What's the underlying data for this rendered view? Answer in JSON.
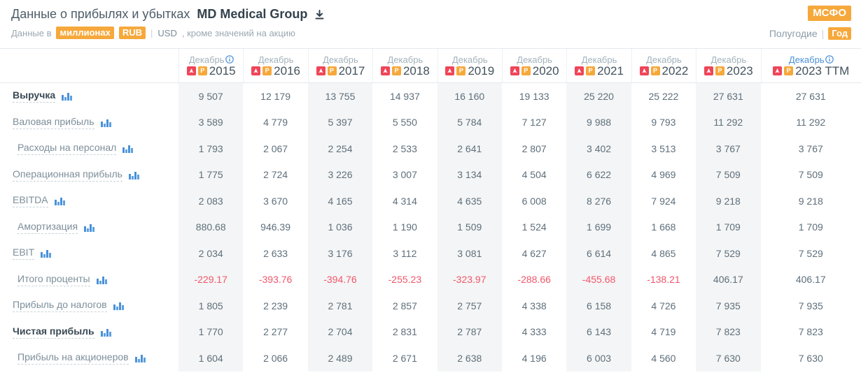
{
  "header": {
    "title_prefix": "Данные о прибылях и убытках",
    "company": "MD Medical Group",
    "subtitle": {
      "prefix": "Данные в",
      "unit_badge": "миллионах",
      "currency_badge": "RUB",
      "separator": "|",
      "currency_alt": "USD",
      "note": ", кроме значений на акцию"
    },
    "standard_badge": "МСФО",
    "period_toggle": {
      "half_year": "Полугодие",
      "separator": "|",
      "year": "Год"
    }
  },
  "colors": {
    "accent_orange": "#f6a83b",
    "link_blue": "#4a90d9",
    "negative_red": "#f2566a",
    "pdf_red": "#ef4558",
    "stripe_gray": "#f4f5f6",
    "text_dark": "#3b4a55",
    "text_gray": "#7d8f9b"
  },
  "icons": {
    "download": "download-icon",
    "info": "info-icon",
    "pdf": "pdf-download-icon",
    "p_letter": "P",
    "chart": "bar-chart-icon"
  },
  "table": {
    "columns": [
      {
        "month": "Декабрь",
        "year": "2015",
        "info": true,
        "link": false,
        "striped": true
      },
      {
        "month": "Декабрь",
        "year": "2016",
        "info": false,
        "link": false,
        "striped": false
      },
      {
        "month": "Декабрь",
        "year": "2017",
        "info": false,
        "link": false,
        "striped": true
      },
      {
        "month": "Декабрь",
        "year": "2018",
        "info": false,
        "link": false,
        "striped": false
      },
      {
        "month": "Декабрь",
        "year": "2019",
        "info": false,
        "link": false,
        "striped": true
      },
      {
        "month": "Декабрь",
        "year": "2020",
        "info": false,
        "link": false,
        "striped": false
      },
      {
        "month": "Декабрь",
        "year": "2021",
        "info": false,
        "link": false,
        "striped": true
      },
      {
        "month": "Декабрь",
        "year": "2022",
        "info": false,
        "link": false,
        "striped": false
      },
      {
        "month": "Декабрь",
        "year": "2023",
        "info": false,
        "link": false,
        "striped": true
      },
      {
        "month": "Декабрь",
        "year": "2023 TTM",
        "info": true,
        "link": true,
        "striped": false
      }
    ],
    "rows": [
      {
        "label": "Выручка",
        "bold": true,
        "indent": false,
        "values": [
          "9 507",
          "12 179",
          "13 755",
          "14 937",
          "16 160",
          "19 133",
          "25 220",
          "25 222",
          "27 631",
          "27 631"
        ]
      },
      {
        "label": "Валовая прибыль",
        "bold": false,
        "indent": false,
        "values": [
          "3 589",
          "4 779",
          "5 397",
          "5 550",
          "5 784",
          "7 127",
          "9 988",
          "9 793",
          "11 292",
          "11 292"
        ]
      },
      {
        "label": "Расходы на персонал",
        "bold": false,
        "indent": true,
        "values": [
          "1 793",
          "2 067",
          "2 254",
          "2 533",
          "2 641",
          "2 807",
          "3 402",
          "3 513",
          "3 767",
          "3 767"
        ]
      },
      {
        "label": "Операционная прибыль",
        "bold": false,
        "indent": false,
        "values": [
          "1 775",
          "2 724",
          "3 226",
          "3 007",
          "3 134",
          "4 504",
          "6 622",
          "4 969",
          "7 509",
          "7 509"
        ]
      },
      {
        "label": "EBITDA",
        "bold": false,
        "indent": false,
        "values": [
          "2 083",
          "3 670",
          "4 165",
          "4 314",
          "4 635",
          "6 008",
          "8 276",
          "7 924",
          "9 218",
          "9 218"
        ]
      },
      {
        "label": "Амортизация",
        "bold": false,
        "indent": true,
        "values": [
          "880.68",
          "946.39",
          "1 036",
          "1 190",
          "1 509",
          "1 524",
          "1 699",
          "1 668",
          "1 709",
          "1 709"
        ]
      },
      {
        "label": "EBIT",
        "bold": false,
        "indent": false,
        "values": [
          "2 034",
          "2 633",
          "3 176",
          "3 112",
          "3 081",
          "4 627",
          "6 614",
          "4 865",
          "7 529",
          "7 529"
        ]
      },
      {
        "label": "Итого проценты",
        "bold": false,
        "indent": true,
        "values": [
          "-229.17",
          "-393.76",
          "-394.76",
          "-255.23",
          "-323.97",
          "-288.66",
          "-455.68",
          "-138.21",
          "406.17",
          "406.17"
        ]
      },
      {
        "label": "Прибыль до налогов",
        "bold": false,
        "indent": false,
        "values": [
          "1 805",
          "2 239",
          "2 781",
          "2 857",
          "2 757",
          "4 338",
          "6 158",
          "4 726",
          "7 935",
          "7 935"
        ]
      },
      {
        "label": "Чистая прибыль",
        "bold": true,
        "indent": false,
        "values": [
          "1 770",
          "2 277",
          "2 704",
          "2 831",
          "2 787",
          "4 333",
          "6 143",
          "4 719",
          "7 823",
          "7 823"
        ]
      },
      {
        "label": "Прибыль на акционеров",
        "bold": false,
        "indent": true,
        "values": [
          "1 604",
          "2 066",
          "2 489",
          "2 671",
          "2 638",
          "4 196",
          "6 003",
          "4 560",
          "7 630",
          "7 630"
        ]
      }
    ]
  }
}
